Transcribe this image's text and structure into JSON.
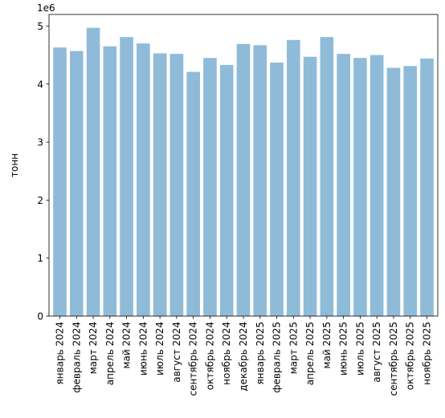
{
  "chart_data": {
    "type": "bar",
    "title": "",
    "xlabel": "",
    "ylabel": "тонн",
    "y_offset_label": "1e6",
    "y_scale": 1000000,
    "ylim": [
      0,
      5200000
    ],
    "yticks": [
      0,
      1000000,
      2000000,
      3000000,
      4000000,
      5000000
    ],
    "ytick_labels": [
      "0",
      "1",
      "2",
      "3",
      "4",
      "5"
    ],
    "grid": false,
    "legend": false,
    "bar_color": "#8fbbd9",
    "categories": [
      "январь 2024",
      "февраль 2024",
      "март 2024",
      "апрель 2024",
      "май 2024",
      "июнь 2024",
      "июль 2024",
      "август 2024",
      "сентябрь 2024",
      "октябрь 2024",
      "ноябрь 2024",
      "декабрь 2024",
      "январь 2025",
      "февраль 2025",
      "март 2025",
      "апрель 2025",
      "май 2025",
      "июнь 2025",
      "июль 2025",
      "август 2025",
      "сентябрь 2025",
      "октябрь 2025",
      "ноябрь 2025"
    ],
    "values": [
      4630000,
      4570000,
      4970000,
      4650000,
      4810000,
      4700000,
      4530000,
      4520000,
      4210000,
      4450000,
      4330000,
      4690000,
      4670000,
      4370000,
      4760000,
      4470000,
      4810000,
      4520000,
      4450000,
      4500000,
      4280000,
      4310000,
      4440000
    ]
  }
}
